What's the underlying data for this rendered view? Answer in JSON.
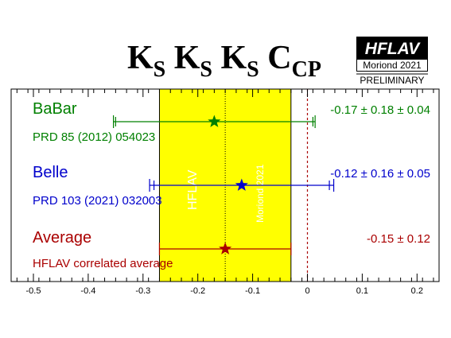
{
  "title": {
    "parts": [
      {
        "main": "K",
        "sub": "S"
      },
      {
        "main": "K",
        "sub": "S"
      },
      {
        "main": "K",
        "sub": "S"
      },
      {
        "main": "C",
        "sub": "CP"
      }
    ]
  },
  "logo": {
    "brand": "HFLAV",
    "edition": "Moriond 2021",
    "status": "PRELIMINARY"
  },
  "band": {
    "label_left": "HFLAV",
    "label_right": "Moriond 2021"
  },
  "colors": {
    "babar": "#008000",
    "belle": "#0000cc",
    "average": "#aa0000",
    "band": "#ffff00",
    "frame": "#000000"
  },
  "chart_data": {
    "type": "forest",
    "xlim": [
      -0.55,
      0.24
    ],
    "xticks": [
      -0.5,
      -0.4,
      -0.3,
      -0.2,
      -0.1,
      0,
      0.1,
      0.2
    ],
    "xtick_labels": [
      "-0.5",
      "-0.4",
      "-0.3",
      "-0.2",
      "-0.1",
      "0",
      "0.1",
      "0.2"
    ],
    "grid": false,
    "average_band": {
      "center": -0.15,
      "low": -0.27,
      "high": -0.03
    },
    "zero_line": 0,
    "rows": [
      {
        "name": "BaBar",
        "reference": "PRD 85 (2012) 054023",
        "value_text": "-0.17 ± 0.18 ± 0.04",
        "central": -0.17,
        "stat_low": -0.35,
        "stat_high": 0.01,
        "total_low": -0.354,
        "total_high": 0.014,
        "color_key": "babar"
      },
      {
        "name": "Belle",
        "reference": "PRD 103 (2021) 032003",
        "value_text": "-0.12 ± 0.16 ± 0.05",
        "central": -0.12,
        "stat_low": -0.28,
        "stat_high": 0.04,
        "total_low": -0.288,
        "total_high": 0.048,
        "color_key": "belle"
      },
      {
        "name": "Average",
        "reference": "HFLAV correlated average",
        "value_text": "-0.15 ± 0.12",
        "central": -0.15,
        "stat_low": -0.27,
        "stat_high": -0.03,
        "total_low": -0.27,
        "total_high": -0.03,
        "color_key": "average"
      }
    ]
  }
}
